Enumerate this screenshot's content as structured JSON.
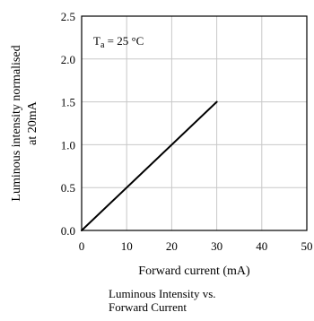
{
  "chart_data": {
    "type": "line",
    "title": "",
    "xlabel": "Forward current (mA)",
    "ylabel_lines": [
      "Luminous intensity normalised",
      "at 20mA"
    ],
    "xlim": [
      0,
      50
    ],
    "ylim": [
      0,
      2.5
    ],
    "xticks": [
      0,
      10,
      20,
      30,
      40,
      50
    ],
    "yticks": [
      0.0,
      0.5,
      1.0,
      1.5,
      2.0,
      2.5
    ],
    "ytick_labels": [
      "0.0",
      "0.5",
      "1.0",
      "1.5",
      "2.0",
      "2.5"
    ],
    "grid": true,
    "annotation": {
      "main": "T",
      "sub": "a",
      "rest": " = 25 °C"
    },
    "series": [
      {
        "x": [
          0,
          30
        ],
        "y": [
          0,
          1.5
        ],
        "color": "#000000"
      }
    ],
    "caption_lines": [
      "Luminous Intensity vs.",
      "Forward Current"
    ]
  }
}
